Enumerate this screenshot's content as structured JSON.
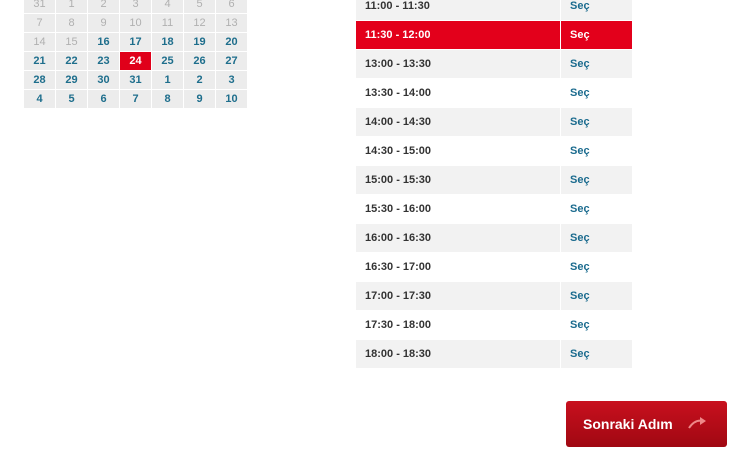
{
  "calendar": {
    "rows": [
      [
        "31",
        "1",
        "2",
        "3",
        "4",
        "5",
        "6"
      ],
      [
        "7",
        "8",
        "9",
        "10",
        "11",
        "12",
        "13"
      ],
      [
        "14",
        "15",
        "16",
        "17",
        "18",
        "19",
        "20"
      ],
      [
        "21",
        "22",
        "23",
        "24",
        "25",
        "26",
        "27"
      ],
      [
        "28",
        "29",
        "30",
        "31",
        "1",
        "2",
        "3"
      ],
      [
        "4",
        "5",
        "6",
        "7",
        "8",
        "9",
        "10"
      ]
    ]
  },
  "slots": {
    "rows": [
      [
        "11:00 - 11:30",
        "Seç"
      ],
      [
        "11:30 - 12:00",
        "Seç"
      ],
      [
        "13:00 - 13:30",
        "Seç"
      ],
      [
        "13:30 - 14:00",
        "Seç"
      ],
      [
        "14:00 - 14:30",
        "Seç"
      ],
      [
        "14:30 - 15:00",
        "Seç"
      ],
      [
        "15:00 - 15:30",
        "Seç"
      ],
      [
        "15:30 - 16:00",
        "Seç"
      ],
      [
        "16:00 - 16:30",
        "Seç"
      ],
      [
        "16:30 - 17:00",
        "Seç"
      ],
      [
        "17:00 - 17:30",
        "Seç"
      ],
      [
        "17:30 - 18:00",
        "Seç"
      ],
      [
        "18:00 - 18:30",
        "Seç"
      ]
    ]
  },
  "button": {
    "label": "Sonraki Adım"
  }
}
